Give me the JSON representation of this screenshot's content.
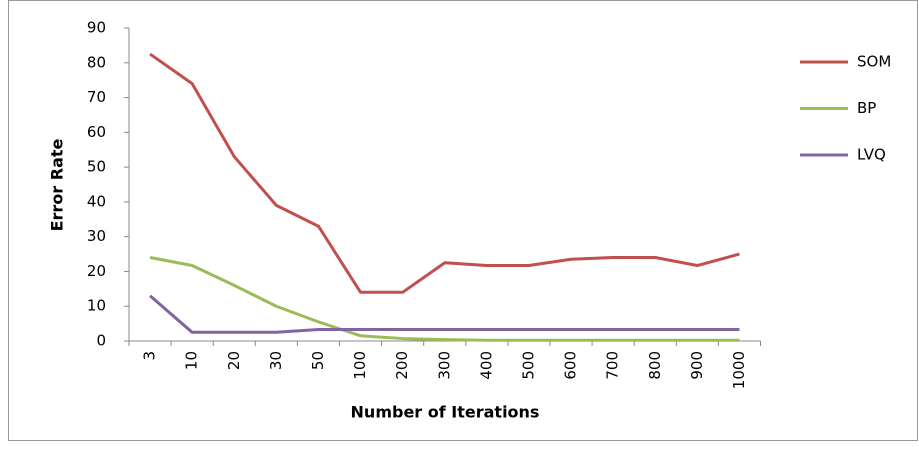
{
  "chart_data": {
    "type": "line",
    "x_label": "Number of Iterations",
    "y_label": "Error Rate",
    "categories": [
      "3",
      "10",
      "20",
      "30",
      "50",
      "100",
      "200",
      "300",
      "400",
      "500",
      "600",
      "700",
      "800",
      "900",
      "1000"
    ],
    "series": [
      {
        "name": "SOM",
        "color": "#c0504d",
        "values": [
          82.5,
          74,
          53,
          39,
          33,
          14,
          14,
          22.5,
          21.7,
          21.7,
          23.5,
          24,
          24,
          21.7,
          25
        ]
      },
      {
        "name": "BP",
        "color": "#9bbb59",
        "values": [
          24,
          21.7,
          16,
          10,
          5.5,
          1.5,
          0.7,
          0.4,
          0.2,
          0.2,
          0.2,
          0.2,
          0.2,
          0.2,
          0.2
        ]
      },
      {
        "name": "LVQ",
        "color": "#8064a2",
        "values": [
          13,
          2.5,
          2.5,
          2.5,
          3.3,
          3.3,
          3.3,
          3.3,
          3.3,
          3.3,
          3.3,
          3.3,
          3.3,
          3.3,
          3.3
        ]
      }
    ],
    "ylim": [
      0,
      90
    ],
    "yticks": [
      0,
      10,
      20,
      30,
      40,
      50,
      60,
      70,
      80,
      90
    ],
    "grid": false,
    "legend": "right"
  }
}
